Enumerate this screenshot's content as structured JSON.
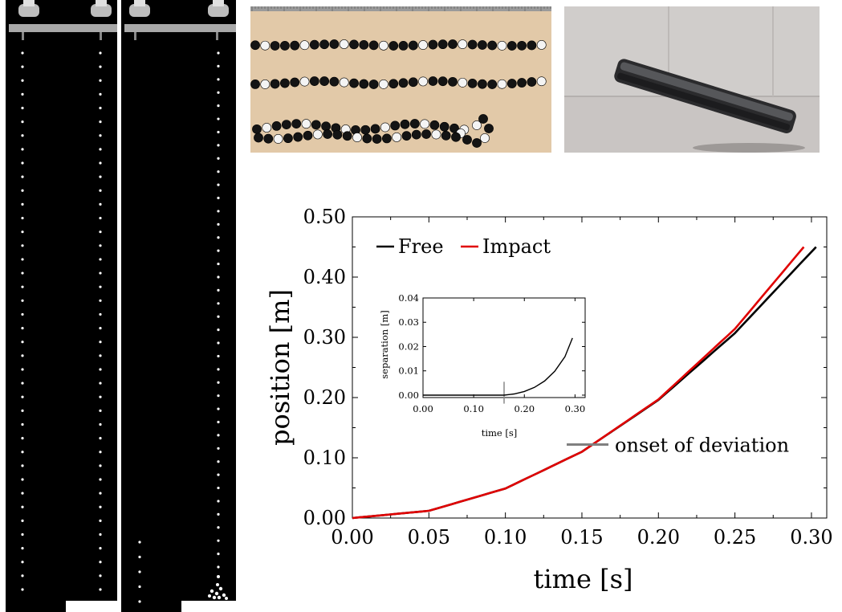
{
  "photos": {
    "strobe_left": {
      "dot_count": 40
    },
    "strobe_right": {
      "dot_count_left": 5,
      "dot_count_right": 40
    }
  },
  "chart_data": [
    {
      "type": "line",
      "xlabel": "time [s]",
      "ylabel": "position [m]",
      "xlim": [
        0.0,
        0.31
      ],
      "ylim": [
        0.0,
        0.5
      ],
      "x_ticks": [
        "0.00",
        "0.05",
        "0.10",
        "0.15",
        "0.20",
        "0.25",
        "0.30"
      ],
      "y_ticks": [
        "0.00",
        "0.10",
        "0.20",
        "0.30",
        "0.40",
        "0.50"
      ],
      "legend": {
        "placement": "top-left"
      },
      "series": [
        {
          "name": "Free",
          "color": "#000000",
          "x": [
            0.0,
            0.05,
            0.1,
            0.15,
            0.2,
            0.25,
            0.303
          ],
          "y": [
            0.0,
            0.012,
            0.049,
            0.11,
            0.196,
            0.307,
            0.45
          ]
        },
        {
          "name": "Impact",
          "color": "#e00000",
          "x": [
            0.0,
            0.05,
            0.1,
            0.15,
            0.2,
            0.25,
            0.295
          ],
          "y": [
            0.0,
            0.012,
            0.049,
            0.11,
            0.197,
            0.314,
            0.45
          ]
        }
      ],
      "annotations": [
        {
          "text": "onset of deviation",
          "x": 0.16,
          "y": 0.122,
          "color": "#808080"
        }
      ]
    },
    {
      "type": "line",
      "xlabel": "time [s]",
      "ylabel": "separation [m]",
      "xlim": [
        0.0,
        0.32
      ],
      "ylim": [
        -0.001,
        0.04
      ],
      "x_ticks": [
        "0.00",
        "0.10",
        "0.20",
        "0.30"
      ],
      "y_ticks": [
        "0.00",
        "0.01",
        "0.02",
        "0.03",
        "0.04"
      ],
      "series": [
        {
          "color": "#000000",
          "x": [
            0.0,
            0.1,
            0.16,
            0.18,
            0.2,
            0.22,
            0.24,
            0.26,
            0.28,
            0.295
          ],
          "y": [
            0.0,
            0.0,
            0.0,
            0.0005,
            0.0015,
            0.0032,
            0.0058,
            0.0098,
            0.0158,
            0.0235
          ]
        }
      ],
      "marker_x": 0.16
    }
  ]
}
